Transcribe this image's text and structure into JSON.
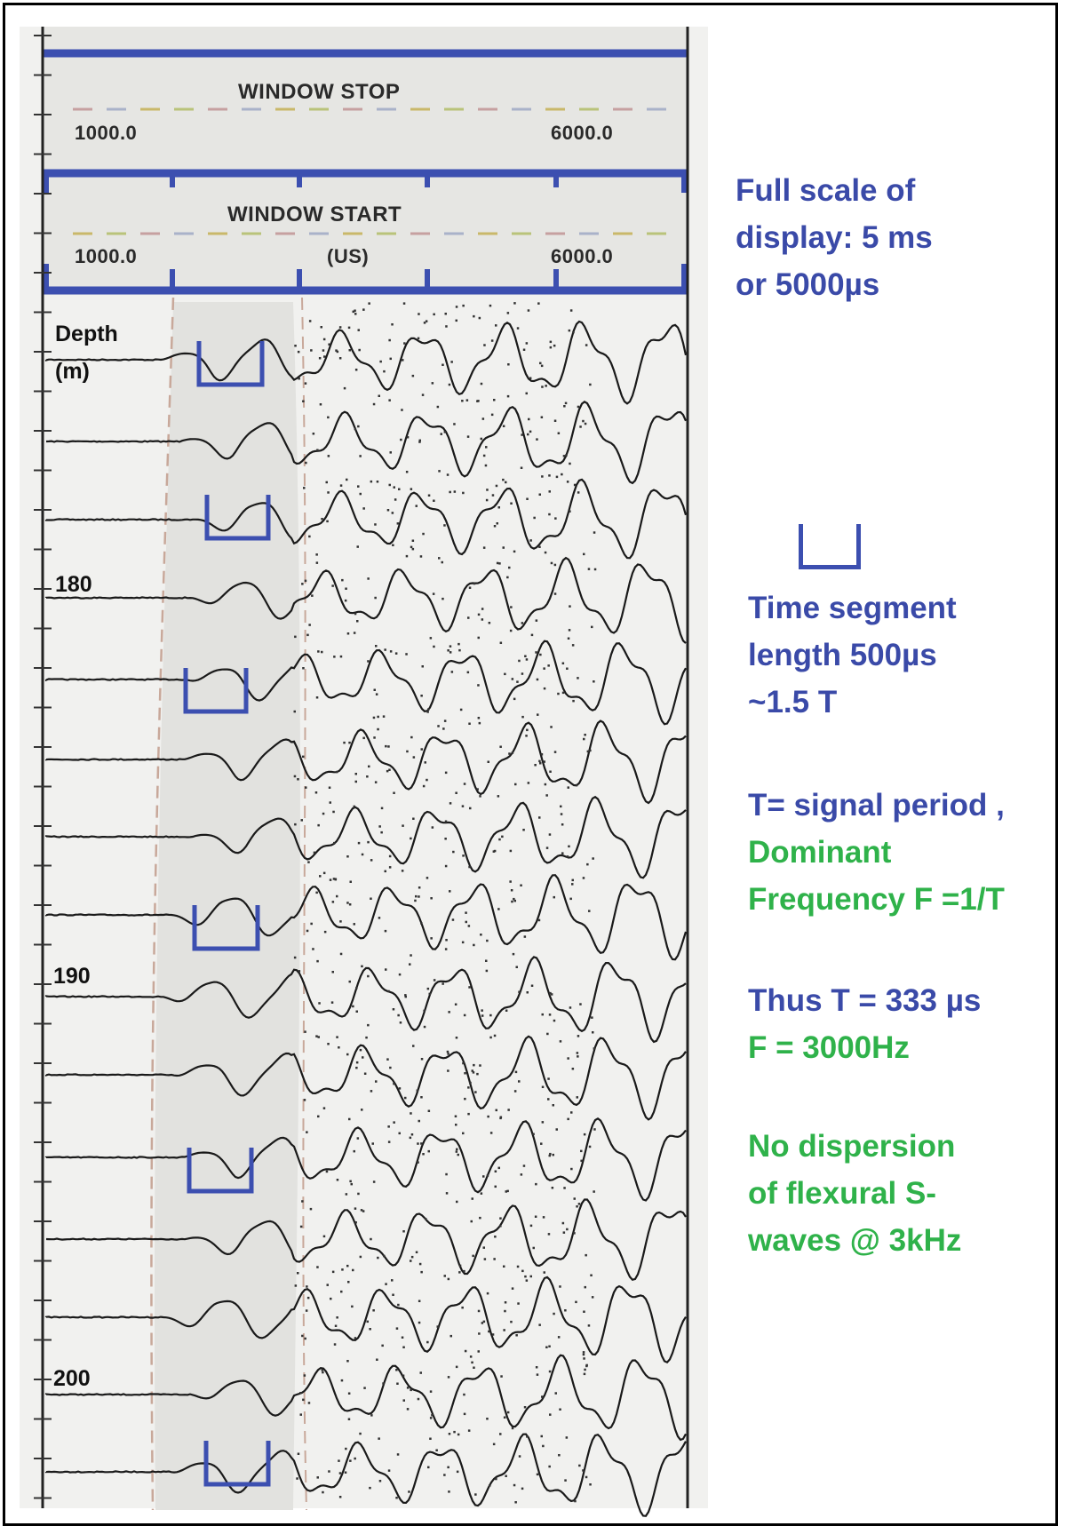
{
  "header": {
    "window_stop": {
      "title": "WINDOW STOP",
      "min": "1000.0",
      "max": "6000.0"
    },
    "window_start": {
      "title": "WINDOW START",
      "min": "1000.0",
      "unit": "(US)",
      "max": "6000.0"
    }
  },
  "depth_axis": {
    "label_line1": "Depth",
    "label_line2": "(m)",
    "ticks": [
      "180",
      "190",
      "200"
    ]
  },
  "annotations": {
    "full_scale": [
      "Full scale of",
      "display: 5 ms",
      "or  5000µs"
    ],
    "segment": [
      "Time segment",
      "length 500µs",
      "~1.5 T"
    ],
    "period": "T= signal period ,",
    "frequency": [
      "Dominant",
      "Frequency F =1/T"
    ],
    "result_t": "Thus T = 333 µs",
    "result_f": "F = 3000Hz",
    "dispersion": [
      "No dispersion",
      "of flexural S-",
      "waves @ 3kHz"
    ]
  },
  "colors": {
    "annotation_blue": "#3a4aa8",
    "annotation_green": "#2fb24a",
    "bracket_blue": "#3c4fb0",
    "trace": "#1a1a1a"
  }
}
